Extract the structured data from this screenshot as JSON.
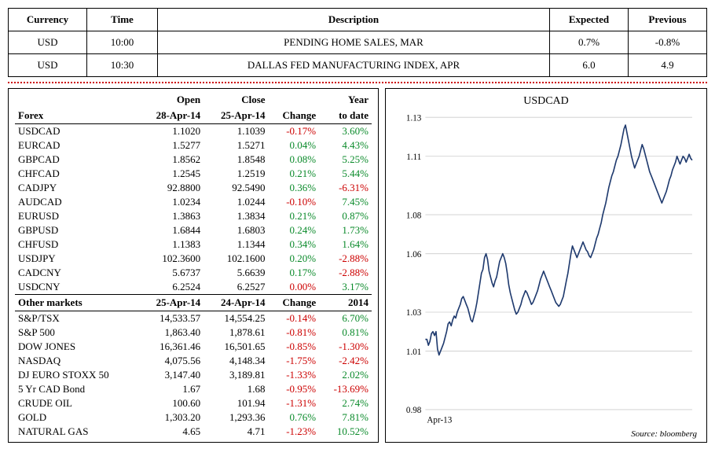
{
  "events": {
    "headers": [
      "Currency",
      "Time",
      "Description",
      "Expected",
      "Previous"
    ],
    "col_widths": [
      "100px",
      "90px",
      "auto",
      "100px",
      "100px"
    ],
    "rows": [
      [
        "USD",
        "10:00",
        "PENDING HOME SALES, MAR",
        "0.7%",
        "-0.8%"
      ],
      [
        "USD",
        "10:30",
        "DALLAS FED MANUFACTURING INDEX, APR",
        "6.0",
        "4.9"
      ]
    ]
  },
  "forex": {
    "title": "Forex",
    "headers_top": [
      "",
      "Open",
      "Close",
      "",
      "Year"
    ],
    "headers_bot": [
      "",
      "28-Apr-14",
      "25-Apr-14",
      "Change",
      "to date"
    ],
    "rows": [
      {
        "name": "USDCAD",
        "open": "1.1020",
        "close": "1.1039",
        "change": "-0.17%",
        "cd": "neg",
        "ytd": "3.60%",
        "yd": "pos"
      },
      {
        "name": "EURCAD",
        "open": "1.5277",
        "close": "1.5271",
        "change": "0.04%",
        "cd": "pos",
        "ytd": "4.43%",
        "yd": "pos"
      },
      {
        "name": "GBPCAD",
        "open": "1.8562",
        "close": "1.8548",
        "change": "0.08%",
        "cd": "pos",
        "ytd": "5.25%",
        "yd": "pos"
      },
      {
        "name": "CHFCAD",
        "open": "1.2545",
        "close": "1.2519",
        "change": "0.21%",
        "cd": "pos",
        "ytd": "5.44%",
        "yd": "pos"
      },
      {
        "name": "CADJPY",
        "open": "92.8800",
        "close": "92.5490",
        "change": "0.36%",
        "cd": "pos",
        "ytd": "-6.31%",
        "yd": "neg"
      },
      {
        "name": "AUDCAD",
        "open": "1.0234",
        "close": "1.0244",
        "change": "-0.10%",
        "cd": "neg",
        "ytd": "7.45%",
        "yd": "pos"
      },
      {
        "name": "EURUSD",
        "open": "1.3863",
        "close": "1.3834",
        "change": "0.21%",
        "cd": "pos",
        "ytd": "0.87%",
        "yd": "pos"
      },
      {
        "name": "GBPUSD",
        "open": "1.6844",
        "close": "1.6803",
        "change": "0.24%",
        "cd": "pos",
        "ytd": "1.73%",
        "yd": "pos"
      },
      {
        "name": "CHFUSD",
        "open": "1.1383",
        "close": "1.1344",
        "change": "0.34%",
        "cd": "pos",
        "ytd": "1.64%",
        "yd": "pos"
      },
      {
        "name": "USDJPY",
        "open": "102.3600",
        "close": "102.1600",
        "change": "0.20%",
        "cd": "pos",
        "ytd": "-2.88%",
        "yd": "neg"
      },
      {
        "name": "CADCNY",
        "open": "5.6737",
        "close": "5.6639",
        "change": "0.17%",
        "cd": "pos",
        "ytd": "-2.88%",
        "yd": "neg"
      },
      {
        "name": "USDCNY",
        "open": "6.2524",
        "close": "6.2527",
        "change": "0.00%",
        "cd": "neg",
        "ytd": "3.17%",
        "yd": "pos"
      }
    ]
  },
  "other": {
    "title": "Other markets",
    "headers_bot": [
      "",
      "25-Apr-14",
      "24-Apr-14",
      "Change",
      "2014"
    ],
    "rows": [
      {
        "name": "S&P/TSX",
        "open": "14,533.57",
        "close": "14,554.25",
        "change": "-0.14%",
        "cd": "neg",
        "ytd": "6.70%",
        "yd": "pos"
      },
      {
        "name": "S&P 500",
        "open": "1,863.40",
        "close": "1,878.61",
        "change": "-0.81%",
        "cd": "neg",
        "ytd": "0.81%",
        "yd": "pos"
      },
      {
        "name": "DOW JONES",
        "open": "16,361.46",
        "close": "16,501.65",
        "change": "-0.85%",
        "cd": "neg",
        "ytd": "-1.30%",
        "yd": "neg"
      },
      {
        "name": "NASDAQ",
        "open": "4,075.56",
        "close": "4,148.34",
        "change": "-1.75%",
        "cd": "neg",
        "ytd": "-2.42%",
        "yd": "neg"
      },
      {
        "name": "DJ EURO STOXX 50",
        "open": "3,147.40",
        "close": "3,189.81",
        "change": "-1.33%",
        "cd": "neg",
        "ytd": "2.02%",
        "yd": "pos"
      },
      {
        "name": "5 Yr CAD Bond",
        "open": "1.67",
        "close": "1.68",
        "change": "-0.95%",
        "cd": "neg",
        "ytd": "-13.69%",
        "yd": "neg"
      },
      {
        "name": "CRUDE OIL",
        "open": "100.60",
        "close": "101.94",
        "change": "-1.31%",
        "cd": "neg",
        "ytd": "2.74%",
        "yd": "pos"
      },
      {
        "name": "GOLD",
        "open": "1,303.20",
        "close": "1,293.36",
        "change": "0.76%",
        "cd": "pos",
        "ytd": "7.81%",
        "yd": "pos"
      },
      {
        "name": "NATURAL GAS",
        "open": "4.65",
        "close": "4.71",
        "change": "-1.23%",
        "cd": "neg",
        "ytd": "10.52%",
        "yd": "pos"
      }
    ]
  },
  "chart": {
    "title": "USDCAD",
    "source": "Source: bloomberg",
    "x_label": "Apr-13",
    "ylim": [
      0.98,
      1.13
    ],
    "yticks": [
      0.98,
      1.01,
      1.03,
      1.06,
      1.08,
      1.11,
      1.13
    ],
    "line_color": "#1f3a6e",
    "line_width": 1.6,
    "grid_color": "#cccccc",
    "background": "#ffffff",
    "font_size_ticks": 11,
    "data": [
      1.016,
      1.016,
      1.013,
      1.015,
      1.019,
      1.02,
      1.018,
      1.02,
      1.011,
      1.008,
      1.01,
      1.012,
      1.014,
      1.017,
      1.02,
      1.024,
      1.025,
      1.023,
      1.026,
      1.028,
      1.027,
      1.03,
      1.032,
      1.034,
      1.037,
      1.038,
      1.036,
      1.034,
      1.032,
      1.029,
      1.026,
      1.025,
      1.028,
      1.031,
      1.035,
      1.04,
      1.045,
      1.05,
      1.052,
      1.058,
      1.06,
      1.057,
      1.051,
      1.048,
      1.045,
      1.043,
      1.046,
      1.048,
      1.052,
      1.056,
      1.058,
      1.06,
      1.058,
      1.055,
      1.05,
      1.044,
      1.04,
      1.037,
      1.034,
      1.031,
      1.029,
      1.03,
      1.032,
      1.034,
      1.037,
      1.039,
      1.041,
      1.04,
      1.038,
      1.036,
      1.034,
      1.035,
      1.037,
      1.039,
      1.041,
      1.044,
      1.047,
      1.049,
      1.051,
      1.049,
      1.047,
      1.045,
      1.043,
      1.041,
      1.039,
      1.037,
      1.035,
      1.034,
      1.033,
      1.034,
      1.036,
      1.038,
      1.042,
      1.046,
      1.05,
      1.055,
      1.06,
      1.064,
      1.062,
      1.06,
      1.058,
      1.06,
      1.062,
      1.064,
      1.066,
      1.064,
      1.062,
      1.061,
      1.059,
      1.058,
      1.06,
      1.062,
      1.065,
      1.068,
      1.07,
      1.073,
      1.076,
      1.08,
      1.083,
      1.086,
      1.09,
      1.094,
      1.097,
      1.1,
      1.102,
      1.105,
      1.108,
      1.11,
      1.113,
      1.116,
      1.12,
      1.124,
      1.126,
      1.122,
      1.118,
      1.114,
      1.11,
      1.107,
      1.104,
      1.106,
      1.108,
      1.11,
      1.113,
      1.116,
      1.114,
      1.111,
      1.108,
      1.105,
      1.102,
      1.1,
      1.098,
      1.096,
      1.094,
      1.092,
      1.09,
      1.088,
      1.086,
      1.088,
      1.09,
      1.092,
      1.095,
      1.098,
      1.1,
      1.103,
      1.105,
      1.107,
      1.11,
      1.108,
      1.106,
      1.108,
      1.11,
      1.109,
      1.107,
      1.109,
      1.111,
      1.109,
      1.108
    ]
  }
}
